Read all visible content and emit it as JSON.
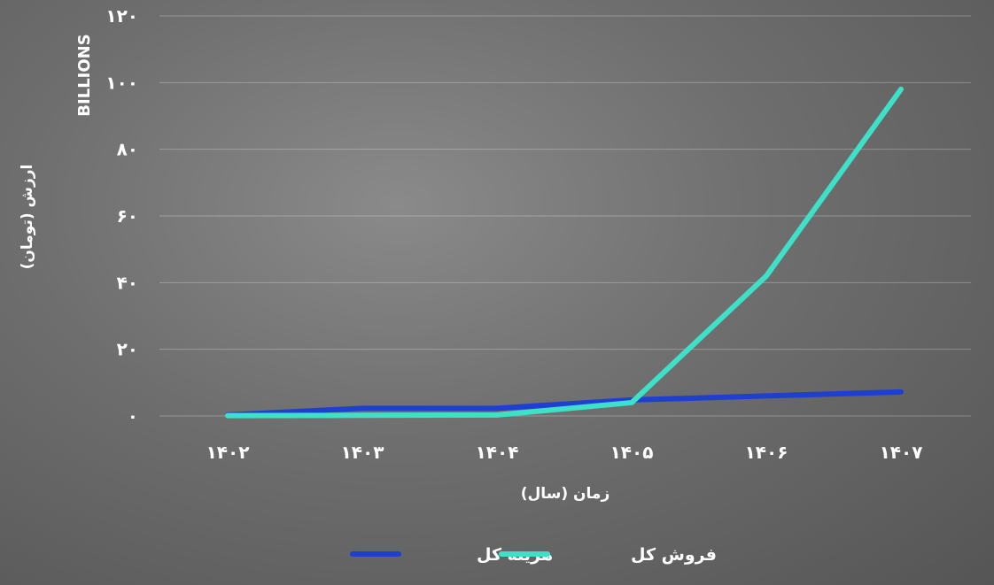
{
  "chart_data": {
    "type": "line",
    "x": [
      "۱۴۰۲",
      "۱۴۰۳",
      "۱۴۰۴",
      "۱۴۰۵",
      "۱۴۰۶",
      "۱۴۰۷"
    ],
    "xlabel": "زمان (سال)",
    "ylabel": "ارزش (تومان)",
    "y_units": "BILLIONS",
    "ylim": [
      0,
      120
    ],
    "yticks": [
      {
        "value": 0,
        "label": "۰"
      },
      {
        "value": 20,
        "label": "۲۰"
      },
      {
        "value": 40,
        "label": "۴۰"
      },
      {
        "value": 60,
        "label": "۶۰"
      },
      {
        "value": 80,
        "label": "۸۰"
      },
      {
        "value": 100,
        "label": "۱۰۰"
      },
      {
        "value": 120,
        "label": "۱۲۰"
      }
    ],
    "grid": true,
    "legend_position": "bottom",
    "series": [
      {
        "name": "هزینه کل",
        "color": "#1f3fd1",
        "values": [
          0.3,
          2.3,
          2.3,
          4.8,
          6.0,
          7.2
        ]
      },
      {
        "name": "فروش کل",
        "color": "#3fe0c8",
        "values": [
          0.1,
          0.2,
          0.3,
          4.0,
          42.0,
          98.0
        ]
      }
    ]
  }
}
